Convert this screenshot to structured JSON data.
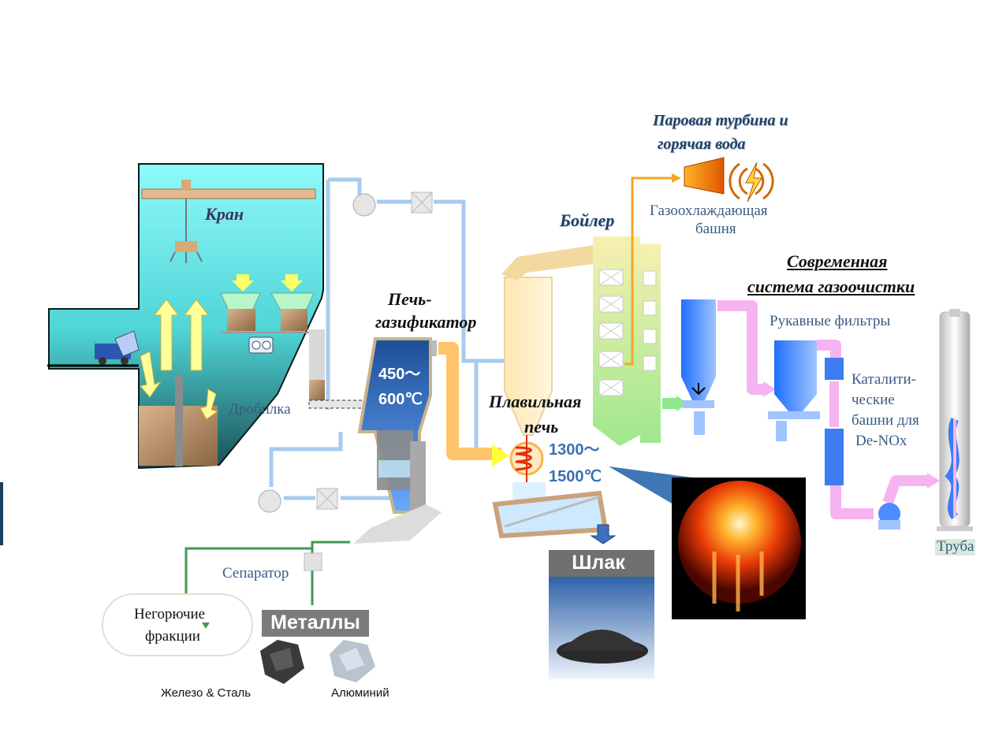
{
  "labels": {
    "crane": "Кран",
    "crusher": "Дробилка",
    "gasifier": "Печь-газификатор",
    "gasifier_line1": "Печь-",
    "gasifier_line2": "газификатор",
    "gasifier_temp_line1": "450～",
    "gasifier_temp_line2": "600℃",
    "melting_furnace_line1": "Плавильная",
    "melting_furnace_line2": "печь",
    "melting_temp_line1": "1300～",
    "melting_temp_line2": "1500℃",
    "boiler": "Бойлер",
    "steam_turbine_line1": "Паровая турбина и",
    "steam_turbine_line2": "горячая вода",
    "gas_cooling_line1": "Газоохлаждающая",
    "gas_cooling_line2": "башня",
    "modern_cleaning_line1": "Современная",
    "modern_cleaning_line2": "система газоочистки",
    "bag_filters": "Рукавные фильтры",
    "catalytic_line1": "Каталити-",
    "catalytic_line2": "ческие",
    "catalytic_line3": "башни для",
    "catalytic_line4": "De-NOx",
    "stack": "Труба",
    "separator": "Сепаратор",
    "noncombustible_line1": "Негорючие",
    "noncombustible_line2": "фракции",
    "metals": "Металлы",
    "slag": "Шлак",
    "iron_steel": "Железо & Сталь",
    "aluminum": "Алюминий"
  },
  "colors": {
    "bunker_top": "#7ff3f3",
    "bunker_bottom": "#1c5c5c",
    "steam_pipe": "#a7cbf0",
    "hot_gas": "#ffc04d",
    "flue_gas_pink": "#f6b3f2",
    "green_duct": "#8ee68e",
    "boiler_orange": "#f5a623",
    "fire_red": "#e03010",
    "label_blue": "#1f3f66",
    "metals_box": "#7b7b7b",
    "slag_box": "#707070"
  }
}
